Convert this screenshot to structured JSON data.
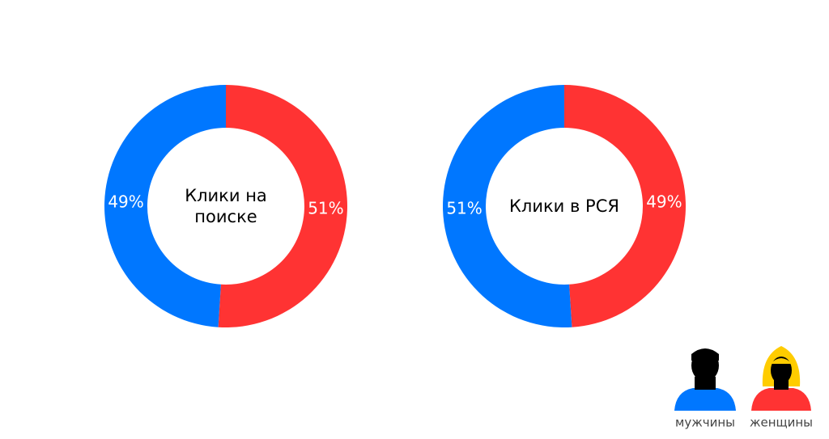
{
  "chart_data": [
    {
      "type": "pie",
      "donut": true,
      "title": "Клики на поиске",
      "categories": [
        "женщины",
        "мужчины"
      ],
      "values": [
        51,
        49
      ],
      "value_labels": [
        "51%",
        "49%"
      ],
      "colors": [
        "#ff3333",
        "#0077ff"
      ]
    },
    {
      "type": "pie",
      "donut": true,
      "title": "Клики в РСЯ",
      "categories": [
        "женщины",
        "мужчины"
      ],
      "values": [
        49,
        51
      ],
      "value_labels": [
        "49%",
        "51%"
      ],
      "colors": [
        "#ff3333",
        "#0077ff"
      ]
    }
  ]
}
